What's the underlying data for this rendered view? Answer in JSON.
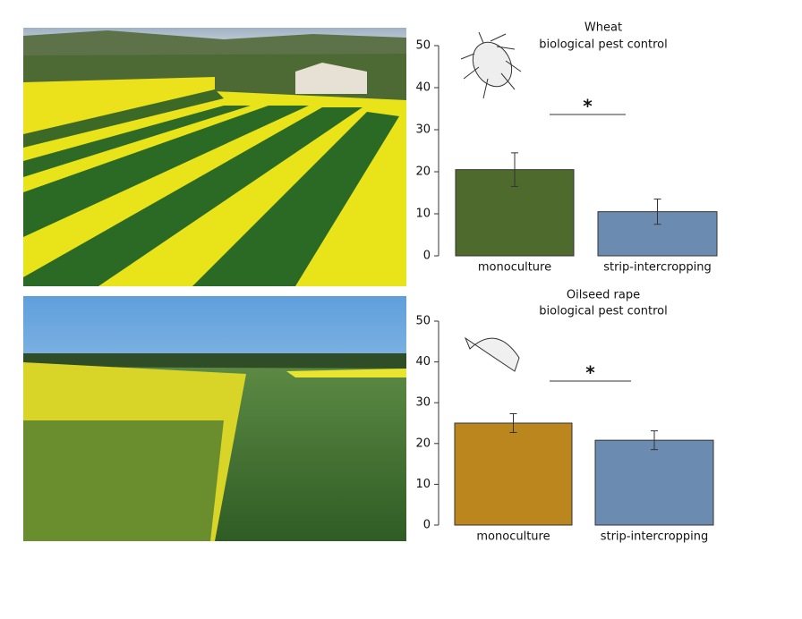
{
  "chart_data": [
    {
      "type": "bar",
      "title": "Wheat",
      "subtitle": "biological pest control",
      "categories": [
        "monoculture",
        "strip-intercropping"
      ],
      "values": [
        20.5,
        10.5
      ],
      "errors": [
        4,
        3
      ],
      "colors": [
        "#4e6a2c",
        "#6c8bb0"
      ],
      "ylim": [
        0,
        50
      ],
      "yticks": [
        0,
        10,
        20,
        30,
        40,
        50
      ],
      "annotation": "*"
    },
    {
      "type": "bar",
      "title": "Oilseed rape",
      "subtitle": "biological pest control",
      "categories": [
        "monoculture",
        "strip-intercropping"
      ],
      "values": [
        25,
        20.8
      ],
      "errors": [
        2.3,
        2.3
      ],
      "colors": [
        "#bb861e",
        "#6c8bb0"
      ],
      "ylim": [
        0,
        50
      ],
      "yticks": [
        0,
        10,
        20,
        30,
        40,
        50
      ],
      "annotation": "*"
    }
  ]
}
